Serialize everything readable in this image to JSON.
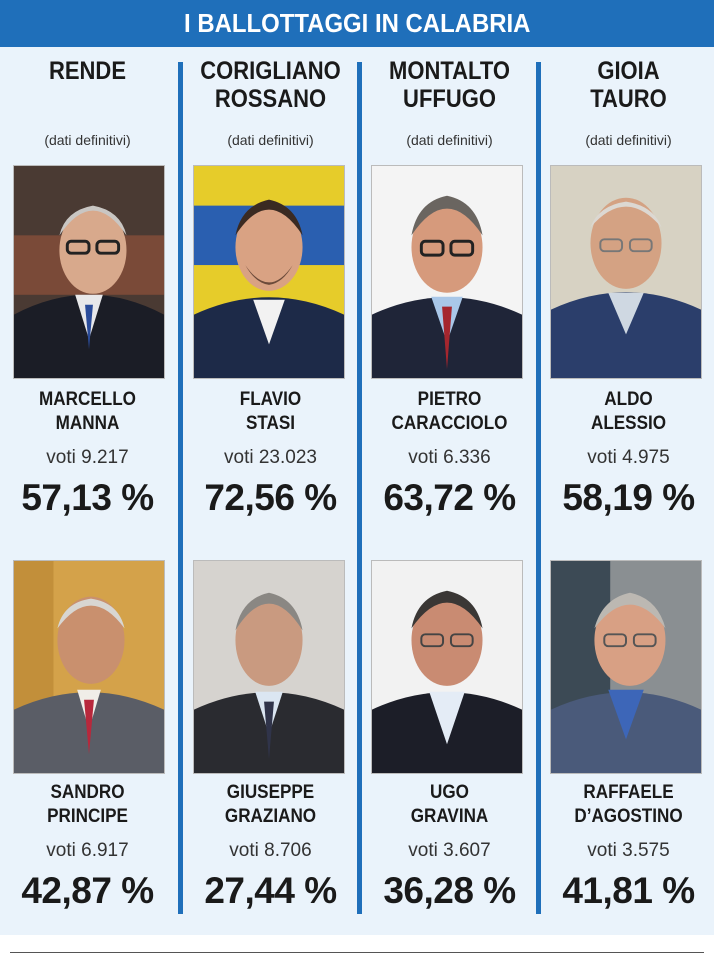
{
  "title": "I BALLOTTAGGI IN CALABRIA",
  "columns": [
    {
      "city_line1": "RENDE",
      "city_line2": "",
      "note": "(dati definitivi)",
      "candidates": [
        {
          "first": "MARCELLO",
          "last": "MANNA",
          "votes": "voti 9.217",
          "pct": "57,13 %"
        },
        {
          "first": "SANDRO",
          "last": "PRINCIPE",
          "votes": "voti 6.917",
          "pct": "42,87 %"
        }
      ]
    },
    {
      "city_line1": "CORIGLIANO",
      "city_line2": "ROSSANO",
      "note": "(dati definitivi)",
      "candidates": [
        {
          "first": "FLAVIO",
          "last": "STASI",
          "votes": "voti 23.023",
          "pct": "72,56 %"
        },
        {
          "first": "GIUSEPPE",
          "last": "GRAZIANO",
          "votes": "voti 8.706",
          "pct": "27,44 %"
        }
      ]
    },
    {
      "city_line1": "MONTALTO",
      "city_line2": "UFFUGO",
      "note": "(dati definitivi)",
      "candidates": [
        {
          "first": "PIETRO",
          "last": "CARACCIOLO",
          "votes": "voti 6.336",
          "pct": "63,72 %"
        },
        {
          "first": "UGO",
          "last": "GRAVINA",
          "votes": "voti 3.607",
          "pct": "36,28 %"
        }
      ]
    },
    {
      "city_line1": "GIOIA",
      "city_line2": "TAURO",
      "note": "(dati definitivi)",
      "candidates": [
        {
          "first": "ALDO",
          "last": "ALESSIO",
          "votes": "voti 4.975",
          "pct": "58,19 %"
        },
        {
          "first": "RAFFAELE",
          "last": "D’AGOSTINO",
          "votes": "voti 3.575",
          "pct": "41,81 %"
        }
      ]
    }
  ],
  "colors": {
    "accent": "#1f6fba",
    "panel": "#eaf3fb"
  }
}
